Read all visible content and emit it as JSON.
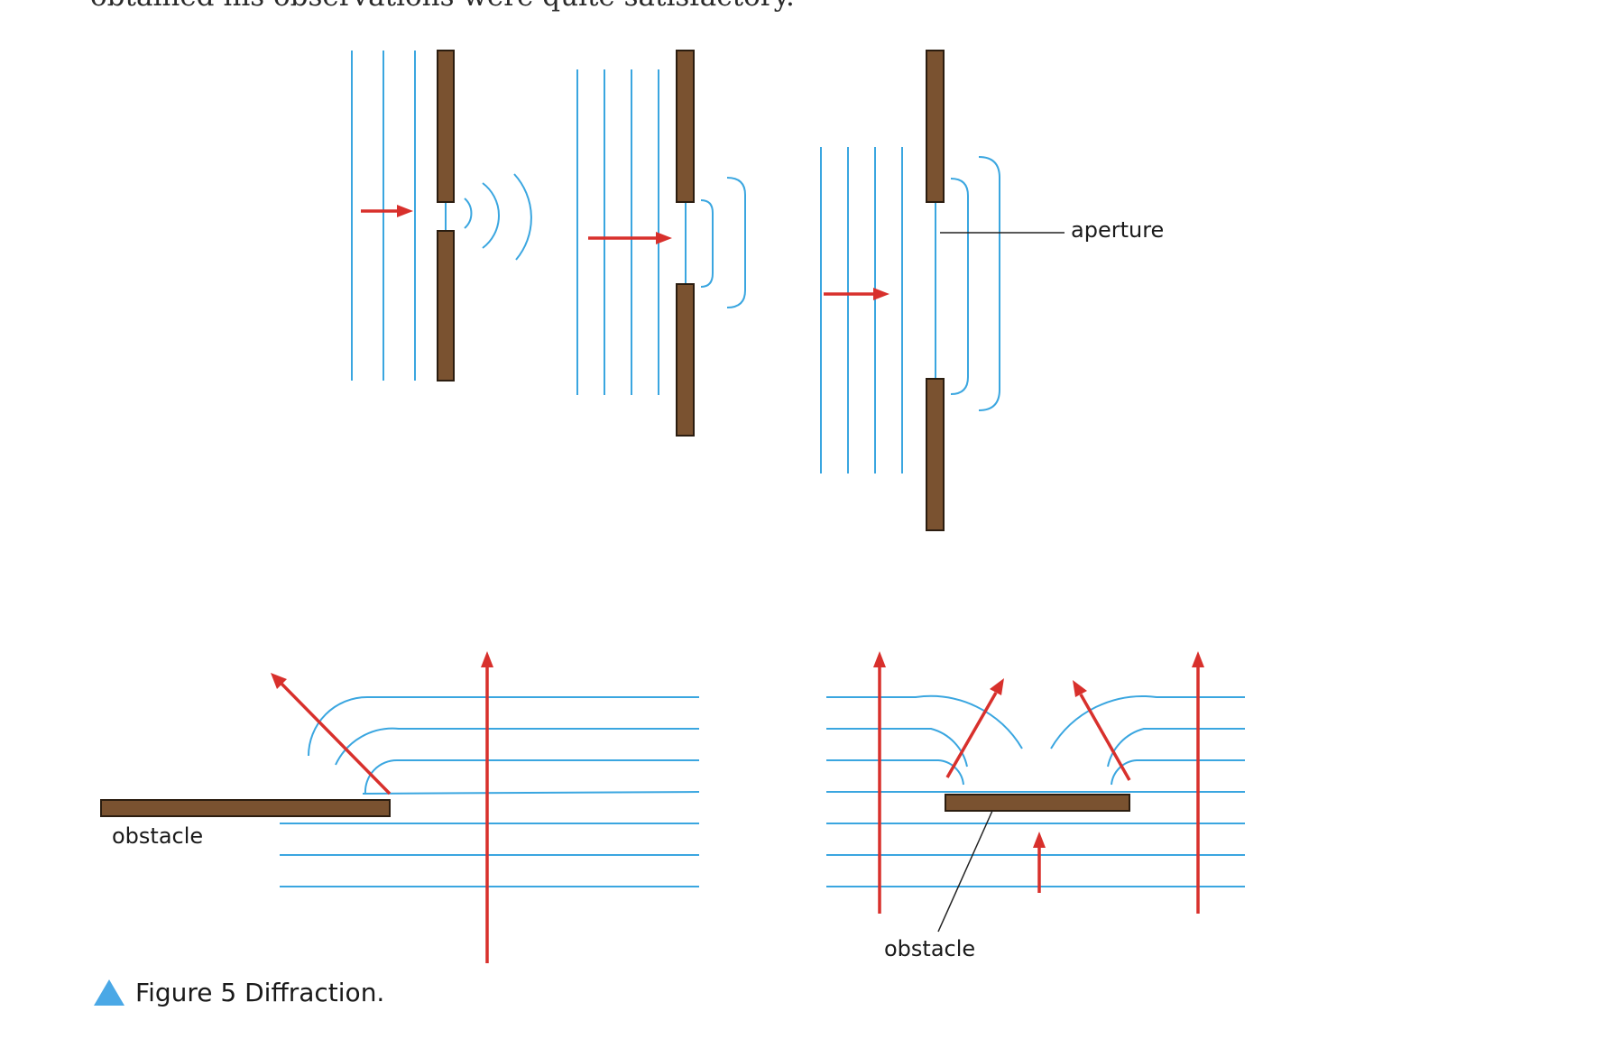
{
  "page": {
    "top_text_cut": "obtained his observations were quite satisfactory.",
    "caption": "Figure 5 Diffraction.",
    "caption_icon": "triangle-icon",
    "colors": {
      "wave": "#3aa6e0",
      "arrow": "#d8302c",
      "barrier": "#7a5230",
      "caption_icon": "#4aa8e6"
    }
  },
  "diagrams": {
    "narrow_aperture": {
      "label": ""
    },
    "medium_aperture": {
      "label": ""
    },
    "wide_aperture": {
      "label": "aperture"
    },
    "edge_obstacle": {
      "label": "obstacle"
    },
    "center_obstacle": {
      "label": "obstacle"
    }
  }
}
